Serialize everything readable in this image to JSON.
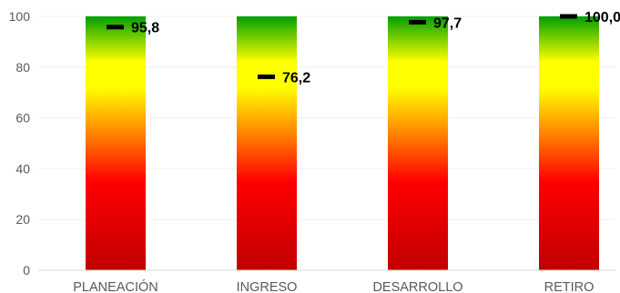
{
  "chart_data": {
    "type": "bar",
    "categories": [
      "PLANEACIÓN",
      "INGRESO",
      "DESARROLLO",
      "RETIRO"
    ],
    "series": [
      {
        "values": [
          100,
          100,
          100,
          100
        ],
        "style": "gradient red-yellow-green"
      },
      {
        "values": [
          95.8,
          76.2,
          97.7,
          100.0
        ],
        "marker": "dash"
      }
    ],
    "data_labels": [
      "95,8",
      "76,2",
      "97,7",
      "100,0"
    ],
    "y_ticks": [
      "0",
      "20",
      "40",
      "60",
      "80",
      "100"
    ],
    "ylim": [
      0,
      100
    ],
    "title": "",
    "xlabel": "",
    "ylabel": "",
    "grid": true,
    "legend": "none",
    "colors": {
      "gradient_bottom": "#c00000",
      "gradient_red": "#ff0000",
      "gradient_orange": "#ff8c00",
      "gradient_yellow": "#ffff00",
      "gradient_green": "#00a000",
      "marker": "#000000",
      "grid": "#f0f0f0",
      "axis": "#d9d9d9"
    }
  }
}
